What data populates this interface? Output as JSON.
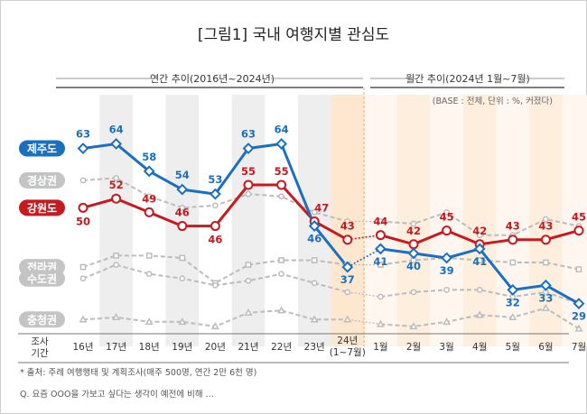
{
  "chart_data": {
    "type": "line",
    "title": "[그림1] 국내 여행지별 관심도",
    "section_left": "연간 추이(2016년~2024년)",
    "section_right": "월간 추이(2024년 1월~7월)",
    "base_note": "(BASE : 전체, 단위 : %, 커졌다)",
    "x_axis_label": [
      "조사",
      "기간"
    ],
    "categories": [
      "16년",
      "17년",
      "18년",
      "19년",
      "20년",
      "21년",
      "22년",
      "23년",
      "24년\n(1~7월)",
      "1월",
      "2월",
      "3월",
      "4월",
      "5월",
      "6월",
      "7월"
    ],
    "yrange": [
      22,
      72
    ],
    "series": [
      {
        "name": "제주도",
        "color": "#1a6fc0",
        "highlight": true,
        "values": [
          63,
          64,
          58,
          54,
          53,
          63,
          64,
          46,
          37,
          41,
          40,
          39,
          41,
          32,
          33,
          29
        ],
        "labels": [
          "63",
          "64",
          "58",
          "54",
          "53",
          "63",
          "64",
          "46",
          "37",
          "41",
          "40",
          "39",
          "41",
          "32",
          "33",
          "29"
        ]
      },
      {
        "name": "경상권",
        "color": "#bcbcbc",
        "highlight": false,
        "values": [
          56,
          56.5,
          52.5,
          50,
          50.5,
          53,
          52.5,
          49,
          47,
          47,
          46.5,
          49,
          44,
          44,
          47.5,
          46
        ]
      },
      {
        "name": "강원도",
        "color": "#c8191f",
        "highlight": true,
        "values": [
          50,
          52,
          49,
          46,
          46,
          55,
          55,
          47,
          43,
          44,
          42,
          45,
          42,
          43,
          43,
          45
        ],
        "labels": [
          "50",
          "52",
          "49",
          "46",
          "46",
          "55",
          "55",
          "47",
          "43",
          "44",
          "42",
          "45",
          "42",
          "43",
          "43",
          "45"
        ]
      },
      {
        "name": "전라권",
        "color": "#bcbcbc",
        "highlight": false,
        "values": [
          37,
          39.5,
          39.5,
          39,
          33.5,
          37.5,
          38.5,
          38.5,
          37.5,
          37.5,
          38.5,
          39,
          38.5,
          38,
          38,
          36.5
        ]
      },
      {
        "name": "수도권",
        "color": "#bcbcbc",
        "highlight": false,
        "values": [
          34.5,
          37.5,
          35.5,
          34.5,
          33,
          34,
          35.5,
          33.5,
          31.5,
          30.5,
          31.5,
          32,
          32,
          30.5,
          31.5,
          29
        ]
      },
      {
        "name": "충청권",
        "color": "#bcbcbc",
        "highlight": false,
        "values": [
          25.5,
          26,
          25,
          25,
          24,
          27,
          27.5,
          25.5,
          25.5,
          24.5,
          24,
          25,
          26.5,
          26,
          28,
          23.5
        ]
      }
    ],
    "legend_placement": "left",
    "grid": false
  },
  "footnote": "* 출처: 주례 여행행태 및 계획조사(매주 500명, 연간 2만 6천 명)",
  "question": "Q. 요즘 OOO을 가보고 싶다는 생각이 예전에 비해 ..."
}
